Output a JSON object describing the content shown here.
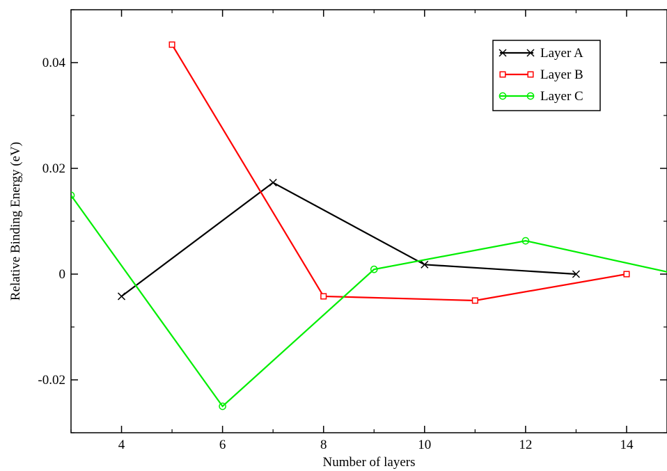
{
  "chart_data": {
    "type": "line",
    "title": "",
    "xlabel": "Number of layers",
    "ylabel": "Relative Binding Energy (eV)",
    "xlim": [
      3,
      14.8
    ],
    "ylim": [
      -0.03,
      0.05
    ],
    "x_ticks": [
      4,
      6,
      8,
      10,
      12,
      14
    ],
    "x_tick_labels": [
      "4",
      "6",
      "8",
      "10",
      "12",
      "14"
    ],
    "y_ticks": [
      -0.02,
      0,
      0.02,
      0.04
    ],
    "y_tick_labels": [
      "-0.02",
      "0",
      "0.02",
      "0.04"
    ],
    "grid": false,
    "legend_position": "top-right",
    "series": [
      {
        "name": "Layer A",
        "color": "#000000",
        "marker": "x",
        "x": [
          4,
          7,
          10,
          13
        ],
        "y": [
          -0.0042,
          0.0173,
          0.0018,
          0.0
        ]
      },
      {
        "name": "Layer B",
        "color": "#ff0000",
        "marker": "square",
        "x": [
          5,
          8,
          11,
          14
        ],
        "y": [
          0.0434,
          -0.0042,
          -0.005,
          0.0
        ]
      },
      {
        "name": "Layer C",
        "color": "#00ee00",
        "marker": "circle",
        "x": [
          3,
          6,
          9,
          12,
          15
        ],
        "y": [
          0.0149,
          -0.025,
          0.0009,
          0.0063,
          0.0
        ]
      }
    ]
  }
}
